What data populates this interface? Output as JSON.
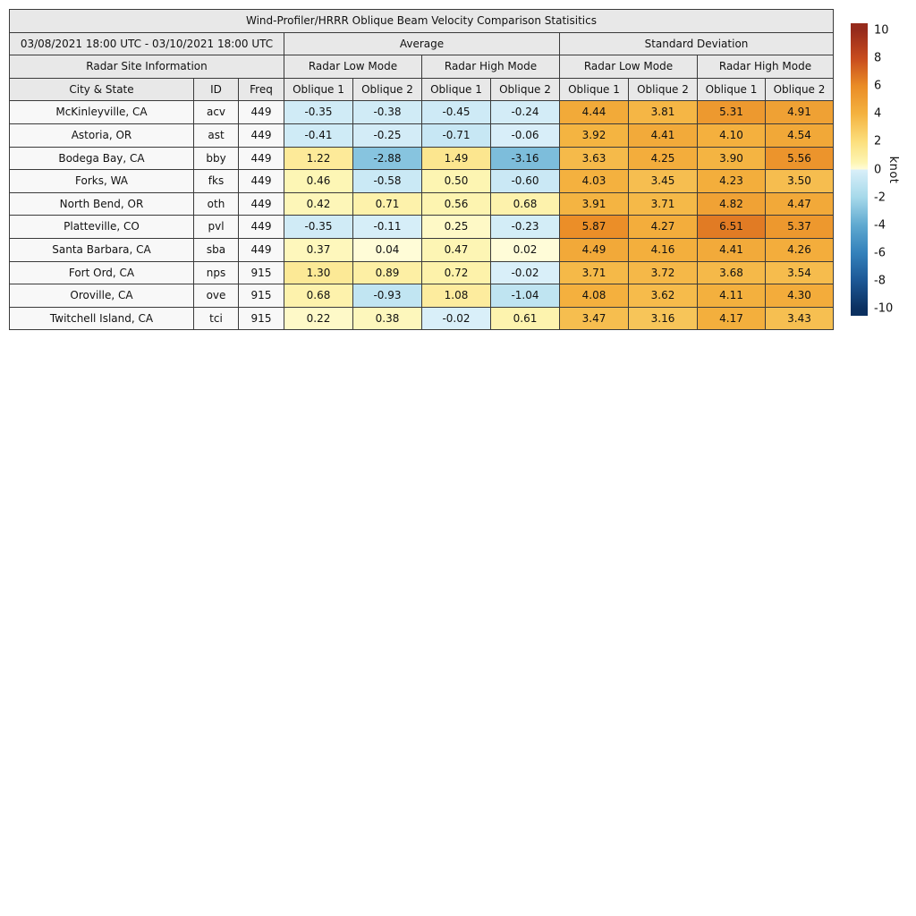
{
  "chart_data": {
    "type": "table",
    "title": "Wind-Profiler/HRRR Oblique Beam Velocity Comparison Statisitics",
    "header": {
      "date_range": "03/08/2021 18:00 UTC - 03/10/2021 18:00 UTC",
      "average": "Average",
      "standard_deviation": "Standard Deviation",
      "site_info": "Radar Site Information",
      "modes": [
        "Radar Low Mode",
        "Radar High Mode",
        "Radar Low Mode",
        "Radar High Mode"
      ],
      "city": "City & State",
      "id": "ID",
      "freq": "Freq",
      "oblique": [
        "Oblique 1",
        "Oblique 2"
      ]
    },
    "rows": [
      {
        "city": "McKinleyville, CA",
        "id": "acv",
        "freq": "449",
        "values": [
          "-0.35",
          "-0.38",
          "-0.45",
          "-0.24",
          "4.44",
          "3.81",
          "5.31",
          "4.91"
        ]
      },
      {
        "city": "Astoria, OR",
        "id": "ast",
        "freq": "449",
        "values": [
          "-0.41",
          "-0.25",
          "-0.71",
          "-0.06",
          "3.92",
          "4.41",
          "4.10",
          "4.54"
        ]
      },
      {
        "city": "Bodega Bay, CA",
        "id": "bby",
        "freq": "449",
        "values": [
          "1.22",
          "-2.88",
          "1.49",
          "-3.16",
          "3.63",
          "4.25",
          "3.90",
          "5.56"
        ]
      },
      {
        "city": "Forks, WA",
        "id": "fks",
        "freq": "449",
        "values": [
          "0.46",
          "-0.58",
          "0.50",
          "-0.60",
          "4.03",
          "3.45",
          "4.23",
          "3.50"
        ]
      },
      {
        "city": "North Bend, OR",
        "id": "oth",
        "freq": "449",
        "values": [
          "0.42",
          "0.71",
          "0.56",
          "0.68",
          "3.91",
          "3.71",
          "4.82",
          "4.47"
        ]
      },
      {
        "city": "Platteville, CO",
        "id": "pvl",
        "freq": "449",
        "values": [
          "-0.35",
          "-0.11",
          "0.25",
          "-0.23",
          "5.87",
          "4.27",
          "6.51",
          "5.37"
        ]
      },
      {
        "city": "Santa Barbara, CA",
        "id": "sba",
        "freq": "449",
        "values": [
          "0.37",
          "0.04",
          "0.47",
          "0.02",
          "4.49",
          "4.16",
          "4.41",
          "4.26"
        ]
      },
      {
        "city": "Fort Ord, CA",
        "id": "nps",
        "freq": "915",
        "values": [
          "1.30",
          "0.89",
          "0.72",
          "-0.02",
          "3.71",
          "3.72",
          "3.68",
          "3.54"
        ]
      },
      {
        "city": "Oroville, CA",
        "id": "ove",
        "freq": "915",
        "values": [
          "0.68",
          "-0.93",
          "1.08",
          "-1.04",
          "4.08",
          "3.62",
          "4.11",
          "4.30"
        ]
      },
      {
        "city": "Twitchell Island, CA",
        "id": "tci",
        "freq": "915",
        "values": [
          "0.22",
          "0.38",
          "-0.02",
          "0.61",
          "3.47",
          "3.16",
          "4.17",
          "3.43"
        ]
      }
    ],
    "colorbar": {
      "label": "knot",
      "ticks": [
        10,
        8,
        6,
        4,
        2,
        0,
        -2,
        -4,
        -6,
        -8,
        -10
      ],
      "vmin": -10,
      "vmax": 10,
      "colormap": [
        [
          -10,
          "#0b3060"
        ],
        [
          -8,
          "#1c5795"
        ],
        [
          -6,
          "#3381bb"
        ],
        [
          -4,
          "#5fa9d0"
        ],
        [
          -2,
          "#a6d9ea"
        ],
        [
          -0.01,
          "#d9eff9"
        ],
        [
          0.01,
          "#fffcd9"
        ],
        [
          0.5,
          "#fdf5b2"
        ],
        [
          2,
          "#fcdf7d"
        ],
        [
          4,
          "#f4b23f"
        ],
        [
          6,
          "#ea8c26"
        ],
        [
          8,
          "#c74b1e"
        ],
        [
          10,
          "#962b1c"
        ]
      ]
    },
    "colors": {
      "header_bg": "#e8e8e8",
      "site_bg": "#f8f8f8",
      "border": "#3a3a3a"
    }
  }
}
